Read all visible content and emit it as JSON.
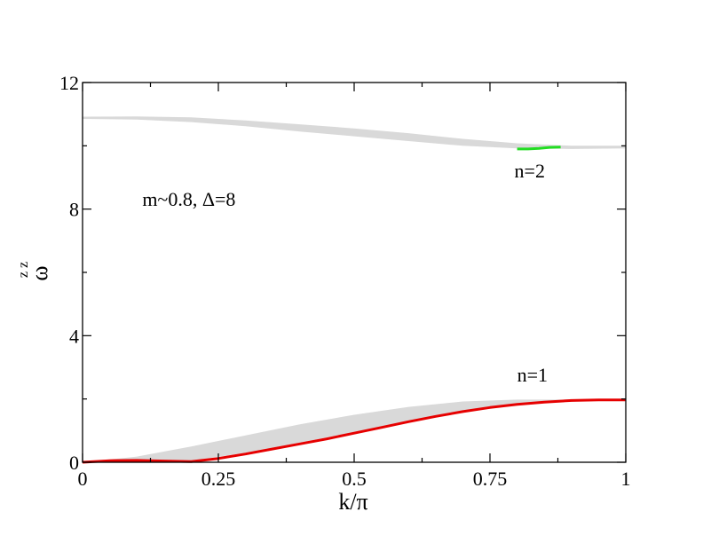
{
  "chart_data": {
    "type": "area",
    "title": "",
    "xlabel": "k/π",
    "ylabel": "ω",
    "ylabel_superscript": "z z",
    "xlim": [
      0,
      1
    ],
    "ylim": [
      0,
      12
    ],
    "x_ticks": [
      {
        "value": 0,
        "label": "0"
      },
      {
        "value": 0.25,
        "label": "0.25"
      },
      {
        "value": 0.5,
        "label": "0.5"
      },
      {
        "value": 0.75,
        "label": "0.75"
      },
      {
        "value": 1,
        "label": "1"
      }
    ],
    "y_ticks": [
      {
        "value": 0,
        "label": "0"
      },
      {
        "value": 4,
        "label": "4"
      },
      {
        "value": 8,
        "label": "8"
      },
      {
        "value": 12,
        "label": "12"
      }
    ],
    "x_minor_ticks": [
      0.125,
      0.375,
      0.625,
      0.875
    ],
    "y_minor_ticks": [
      2,
      6,
      10
    ],
    "grid": false,
    "bands": [
      {
        "color": "#d9d9d9",
        "x": [
          0,
          0.1,
          0.2,
          0.3,
          0.4,
          0.5,
          0.6,
          0.7,
          0.8,
          0.9,
          1.0
        ],
        "lower": [
          10.85,
          10.83,
          10.75,
          10.62,
          10.45,
          10.3,
          10.15,
          10.0,
          9.92,
          9.9,
          9.92
        ],
        "upper": [
          10.92,
          10.93,
          10.9,
          10.8,
          10.68,
          10.55,
          10.4,
          10.22,
          10.08,
          10.0,
          10.0
        ]
      },
      {
        "color": "#d9d9d9",
        "x": [
          0,
          0.1,
          0.2,
          0.3,
          0.4,
          0.5,
          0.6,
          0.7,
          0.8,
          0.9,
          1.0
        ],
        "lower": [
          0.0,
          0.02,
          0.05,
          0.3,
          0.62,
          0.95,
          1.3,
          1.6,
          1.82,
          1.93,
          1.95
        ],
        "upper": [
          0.0,
          0.18,
          0.5,
          0.85,
          1.2,
          1.5,
          1.75,
          1.92,
          1.98,
          1.98,
          1.98
        ]
      }
    ],
    "series": [
      {
        "label": "n=1",
        "color": "#e60000",
        "x": [
          0,
          0.05,
          0.1,
          0.15,
          0.2,
          0.25,
          0.3,
          0.35,
          0.4,
          0.45,
          0.5,
          0.55,
          0.6,
          0.65,
          0.7,
          0.75,
          0.8,
          0.85,
          0.9,
          0.95,
          1.0
        ],
        "y": [
          0.0,
          0.05,
          0.06,
          0.04,
          0.02,
          0.12,
          0.26,
          0.42,
          0.58,
          0.74,
          0.92,
          1.1,
          1.28,
          1.45,
          1.6,
          1.73,
          1.83,
          1.9,
          1.95,
          1.97,
          1.97
        ]
      },
      {
        "label": "n=2",
        "color": "#22dd22",
        "x": [
          0.8,
          0.82,
          0.84,
          0.86,
          0.88
        ],
        "y": [
          9.9,
          9.9,
          9.92,
          9.95,
          9.96
        ]
      }
    ],
    "annotations": [
      {
        "text": "m~0.8, Δ=8",
        "x": 0.11,
        "y": 8.1
      },
      {
        "text": "n=2",
        "x": 0.795,
        "y": 9.0
      },
      {
        "text": "n=1",
        "x": 0.8,
        "y": 2.55
      }
    ]
  }
}
